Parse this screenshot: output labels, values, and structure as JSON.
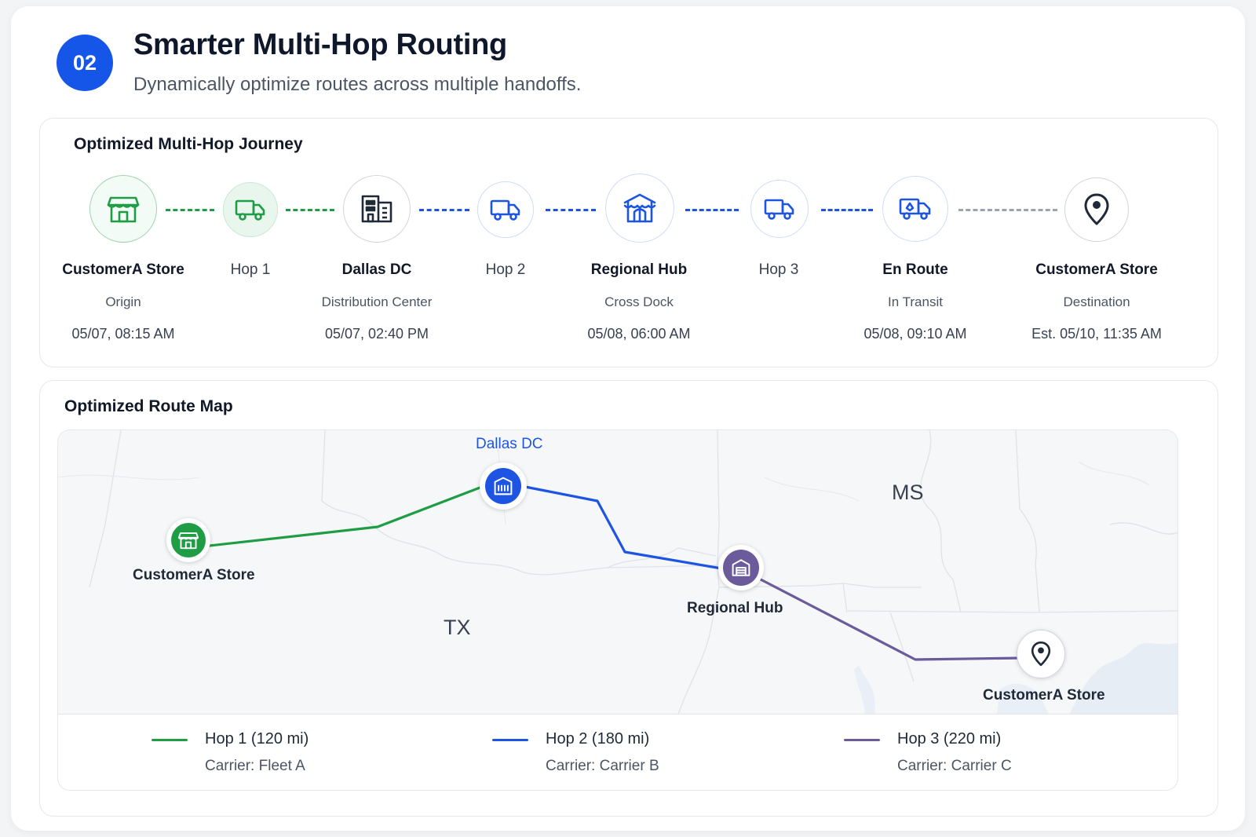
{
  "header": {
    "step_number": "02",
    "title": "Smarter Multi-Hop Routing",
    "subtitle": "Dynamically optimize routes across multiple handoffs."
  },
  "journey": {
    "title": "Optimized Multi-Hop Journey",
    "nodes": [
      {
        "name": "CustomerA Store",
        "sub": "Origin",
        "time": "05/07, 08:15 AM",
        "icon": "store-icon"
      },
      {
        "name": "Hop 1",
        "icon": "truck-icon"
      },
      {
        "name": "Dallas DC",
        "sub": "Distribution Center",
        "time": "05/07, 02:40 PM",
        "icon": "building-icon"
      },
      {
        "name": "Hop 2",
        "icon": "truck-icon"
      },
      {
        "name": "Regional Hub",
        "sub": "Cross Dock",
        "time": "05/08, 06:00 AM",
        "icon": "warehouse-icon"
      },
      {
        "name": "Hop 3",
        "icon": "truck-icon"
      },
      {
        "name": "En Route",
        "sub": "In Transit",
        "time": "05/08, 09:10 AM",
        "icon": "truck-icon"
      },
      {
        "name": "CustomerA Store",
        "sub": "Destination",
        "time": "Est. 05/10, 11:35 AM",
        "icon": "map-pin-icon"
      }
    ]
  },
  "map": {
    "title": "Optimized Route Map",
    "states": [
      "MS",
      "TX"
    ],
    "points": {
      "origin": "CustomerA Store",
      "dallas": "Dallas DC",
      "hub": "Regional Hub",
      "destination": "CustomerA Store"
    },
    "legend": [
      {
        "label": "Hop 1 (120 mi)",
        "carrier": "Carrier: Fleet A",
        "color": "#1f9d45"
      },
      {
        "label": "Hop 2 (180 mi)",
        "carrier": "Carrier: Carrier B",
        "color": "#1d55e2"
      },
      {
        "label": "Hop 3 (220 mi)",
        "carrier": "Carrier: Carrier C",
        "color": "#6b5b9a"
      }
    ]
  },
  "colors": {
    "accent": "#1556e8",
    "green": "#1f9d45",
    "blue": "#1d55e2",
    "purple": "#6b5b9a",
    "gray": "#9ca3af"
  }
}
